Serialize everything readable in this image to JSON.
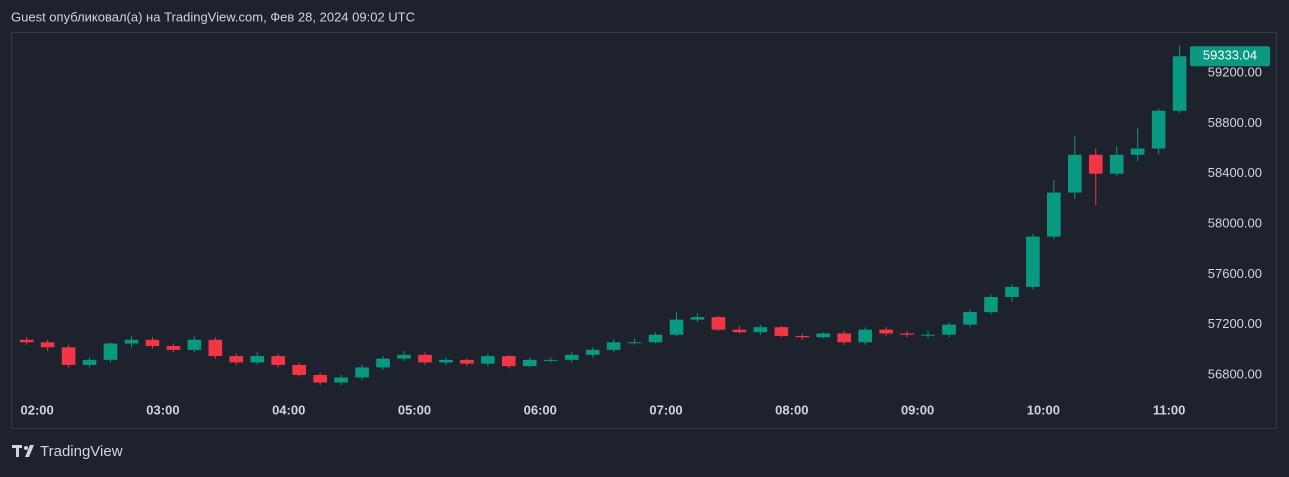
{
  "header": "Guest опубликовал(а) на TradingView.com, Фев 28, 2024 09:02 UTC",
  "footer": "TradingView",
  "chart_data": {
    "type": "candlestick",
    "x": [
      "01:55",
      "02:05",
      "02:15",
      "02:25",
      "02:35",
      "02:45",
      "02:55",
      "03:05",
      "03:15",
      "03:25",
      "03:35",
      "03:45",
      "03:55",
      "04:05",
      "04:15",
      "04:25",
      "04:35",
      "04:45",
      "04:55",
      "05:05",
      "05:15",
      "05:25",
      "05:35",
      "05:45",
      "05:55",
      "06:05",
      "06:15",
      "06:25",
      "06:35",
      "06:45",
      "06:55",
      "07:05",
      "07:15",
      "07:25",
      "07:35",
      "07:45",
      "07:55",
      "08:05",
      "08:15",
      "08:25",
      "08:35",
      "08:45",
      "08:55",
      "09:05",
      "09:15",
      "09:25",
      "09:35",
      "09:45",
      "09:55",
      "10:05",
      "10:15",
      "10:25",
      "10:35",
      "10:45",
      "10:55",
      "11:05"
    ],
    "open": [
      57080,
      57060,
      57020,
      56880,
      56920,
      57050,
      57080,
      57030,
      57000,
      57080,
      56950,
      56900,
      56950,
      56880,
      56800,
      56740,
      56780,
      56860,
      56930,
      56960,
      56900,
      56920,
      56890,
      56950,
      56870,
      56920,
      56920,
      56960,
      57000,
      57060,
      57060,
      57120,
      57240,
      57260,
      57160,
      57140,
      57180,
      57110,
      57100,
      57130,
      57060,
      57160,
      57130,
      57120,
      57120,
      57200,
      57300,
      57420,
      57500,
      57900,
      58250,
      58550,
      58400,
      58550,
      58600,
      58900
    ],
    "high": [
      57100,
      57080,
      57040,
      56940,
      57060,
      57110,
      57100,
      57050,
      57110,
      57100,
      56970,
      56980,
      56970,
      56900,
      56820,
      56800,
      56880,
      56950,
      56990,
      56980,
      56940,
      56930,
      56970,
      56960,
      56940,
      56940,
      56980,
      57020,
      57080,
      57090,
      57140,
      57300,
      57290,
      57270,
      57190,
      57200,
      57190,
      57130,
      57140,
      57150,
      57180,
      57180,
      57150,
      57150,
      57220,
      57320,
      57440,
      57520,
      57920,
      58350,
      58700,
      58600,
      58620,
      58760,
      58920,
      59420
    ],
    "low": [
      57040,
      56990,
      56860,
      56860,
      56900,
      57020,
      57010,
      56980,
      56980,
      56930,
      56880,
      56880,
      56860,
      56790,
      56720,
      56720,
      56760,
      56840,
      56910,
      56880,
      56880,
      56870,
      56870,
      56850,
      56860,
      56900,
      56900,
      56940,
      56980,
      57040,
      57050,
      57110,
      57220,
      57150,
      57130,
      57120,
      57100,
      57080,
      57090,
      57040,
      57040,
      57110,
      57100,
      57090,
      57100,
      57180,
      57280,
      57380,
      57480,
      57880,
      58200,
      58150,
      58380,
      58500,
      58550,
      58880
    ],
    "close": [
      57060,
      57020,
      56880,
      56920,
      57050,
      57080,
      57030,
      57000,
      57080,
      56950,
      56900,
      56950,
      56880,
      56800,
      56740,
      56780,
      56860,
      56930,
      56960,
      56900,
      56920,
      56890,
      56950,
      56870,
      56920,
      56920,
      56960,
      57000,
      57060,
      57060,
      57120,
      57240,
      57260,
      57160,
      57140,
      57180,
      57110,
      57100,
      57130,
      57060,
      57160,
      57130,
      57120,
      57120,
      57200,
      57300,
      57420,
      57500,
      57900,
      58250,
      58550,
      58400,
      58550,
      58600,
      58900,
      59333.04
    ],
    "up_color": "#089981",
    "down_color": "#f23645",
    "xlim": [
      "01:48",
      "11:09"
    ],
    "xticks": [
      "02:00",
      "03:00",
      "04:00",
      "05:00",
      "06:00",
      "07:00",
      "08:00",
      "09:00",
      "10:00",
      "11:00"
    ],
    "ylim": [
      56617,
      59518
    ],
    "yticks": [
      {
        "value": 56800,
        "label": "56800.00"
      },
      {
        "value": 57200,
        "label": "57200.00"
      },
      {
        "value": 57600,
        "label": "57600.00"
      },
      {
        "value": 58000,
        "label": "58000.00"
      },
      {
        "value": 58400,
        "label": "58400.00"
      },
      {
        "value": 58800,
        "label": "58800.00"
      },
      {
        "value": 59200,
        "label": "59200.00"
      }
    ],
    "last_price": 59333.04
  }
}
